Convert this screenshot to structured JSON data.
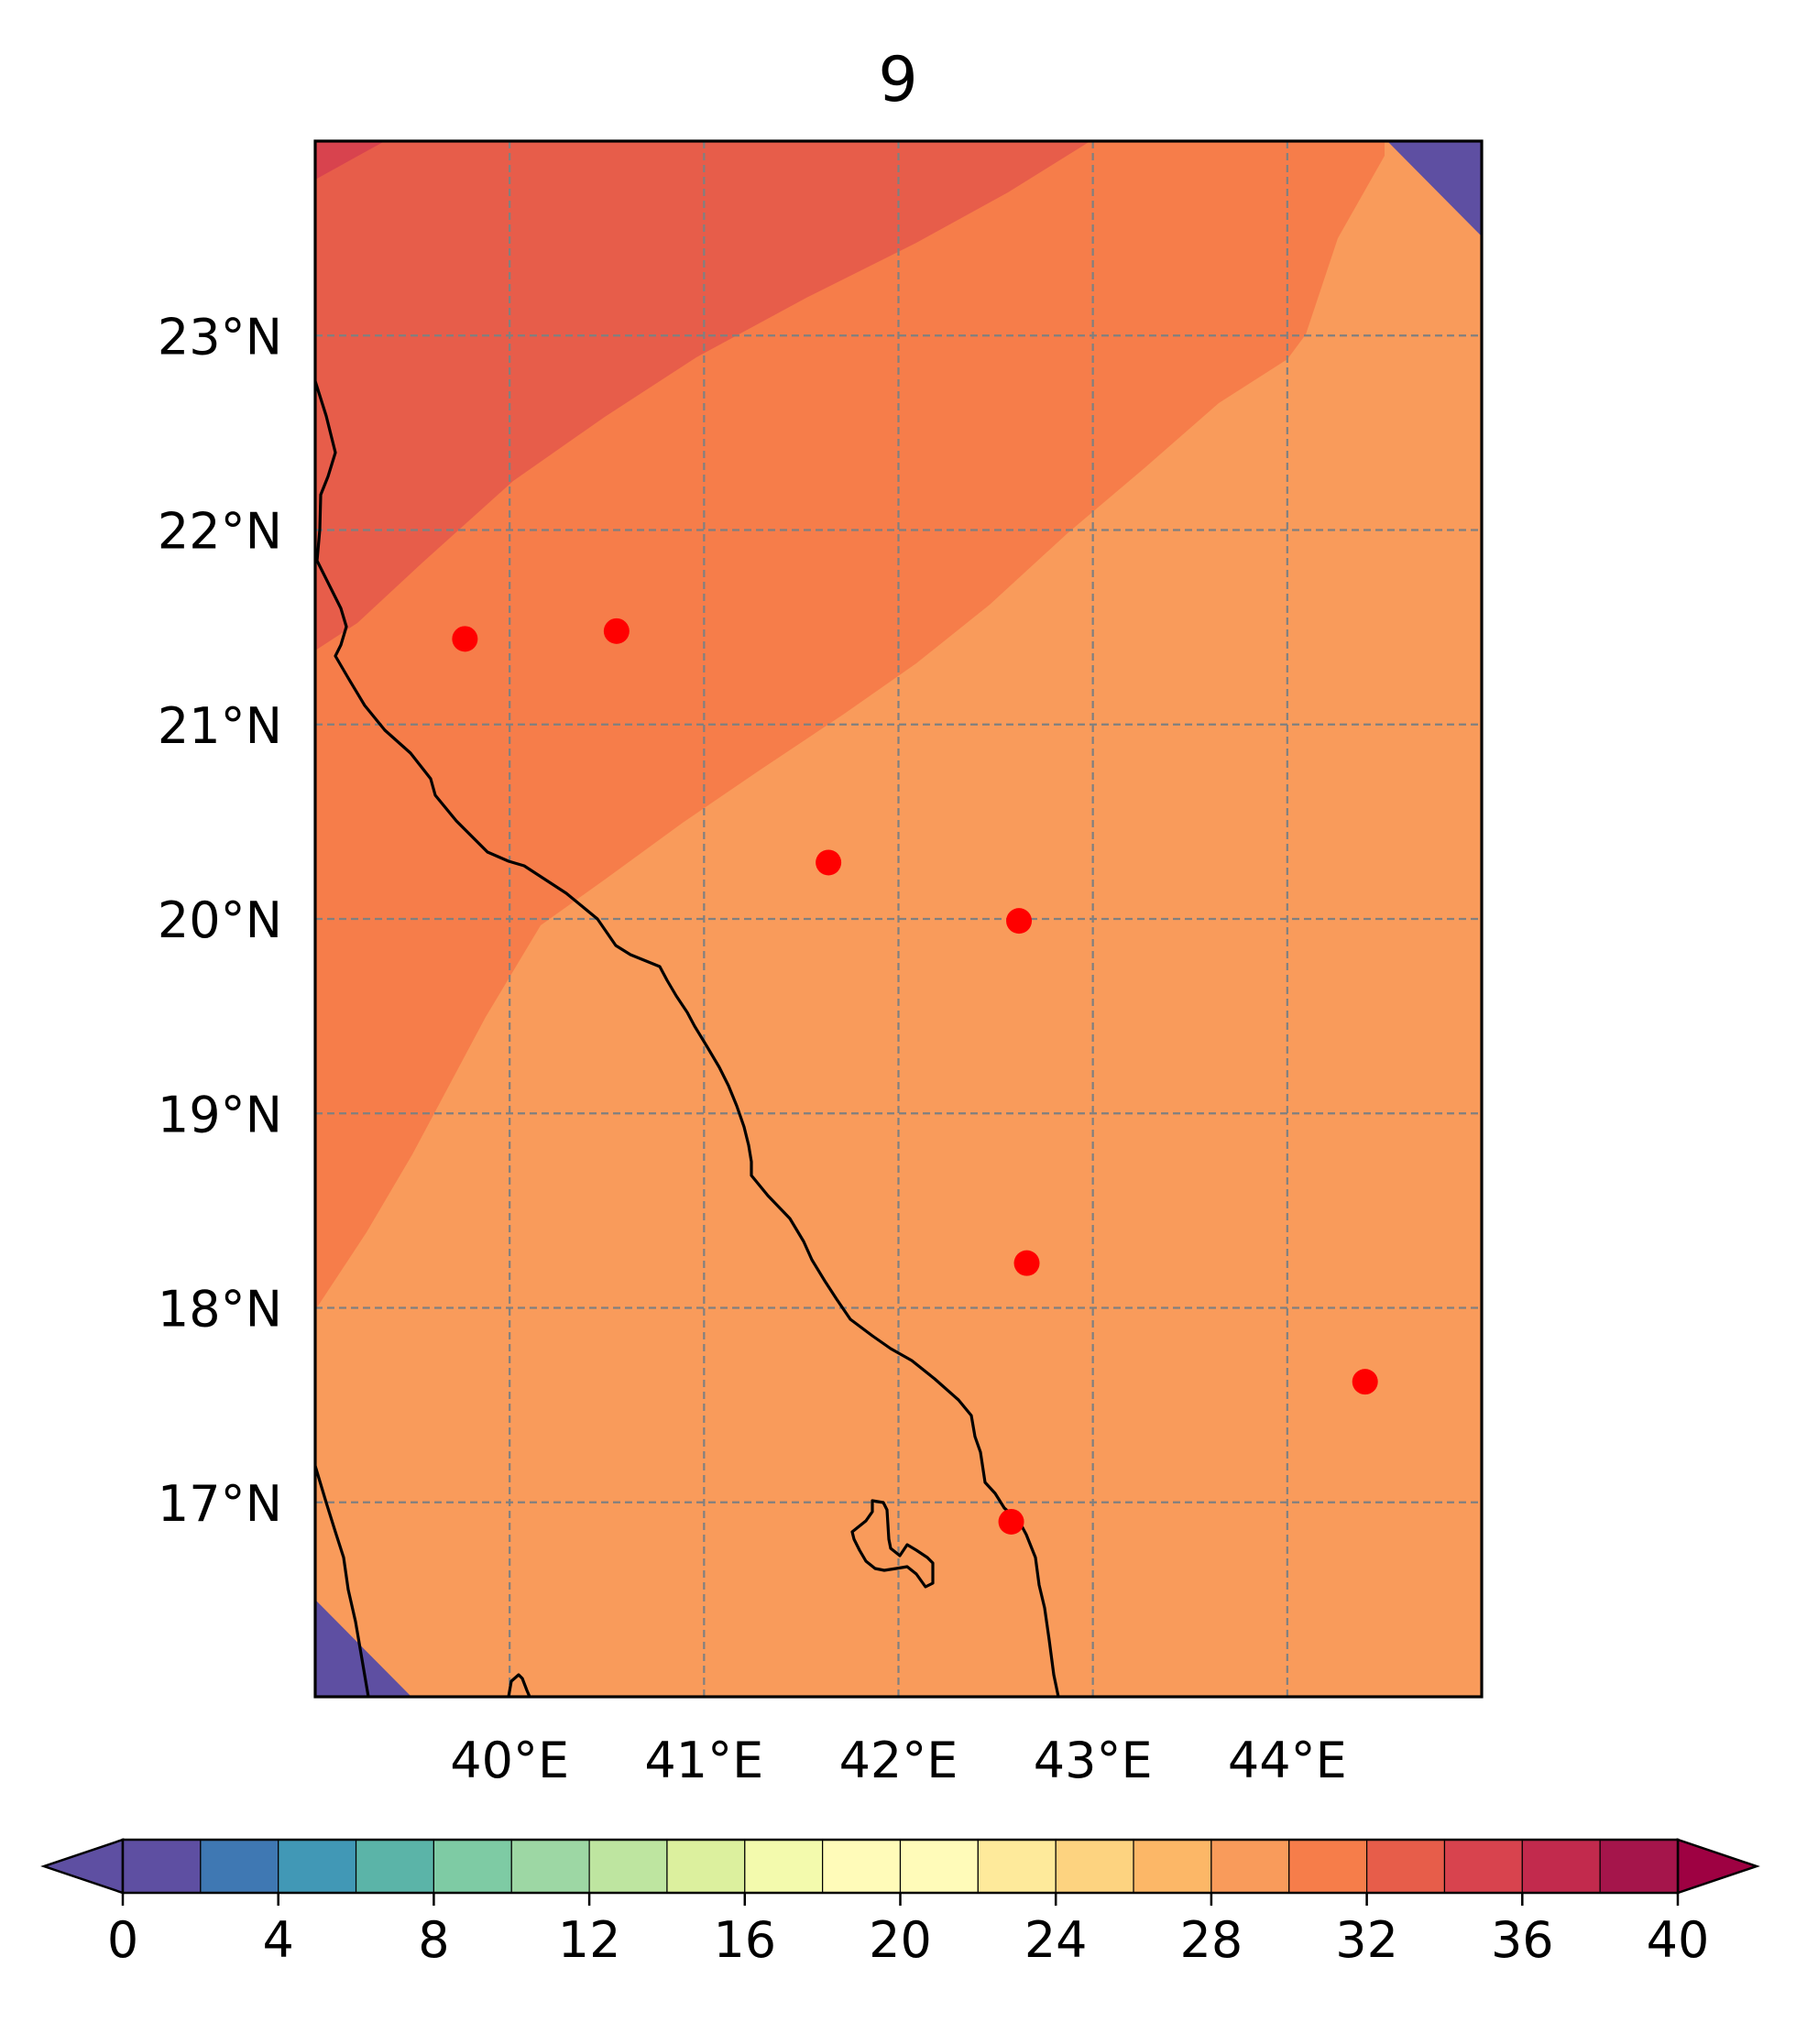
{
  "chart_data": {
    "type": "heatmap",
    "title": "9",
    "xlim": [
      39,
      45
    ],
    "ylim": [
      16,
      24
    ],
    "x_ticks": [
      "40°E",
      "41°E",
      "42°E",
      "43°E",
      "44°E"
    ],
    "x_tick_values": [
      40,
      41,
      42,
      43,
      44
    ],
    "y_ticks": [
      "23°N",
      "22°N",
      "21°N",
      "20°N",
      "19°N",
      "18°N",
      "17°N"
    ],
    "y_tick_values": [
      23,
      22,
      21,
      20,
      19,
      18,
      17
    ],
    "grid": true,
    "colormap": "Spectral_r",
    "colorbar": {
      "orientation": "horizontal",
      "placement": "bottom",
      "extend": "both",
      "range": [
        0,
        40
      ],
      "step": 2,
      "tick_labels": [
        "0",
        "4",
        "8",
        "12",
        "16",
        "20",
        "24",
        "28",
        "32",
        "36",
        "40"
      ],
      "tick_values": [
        0,
        4,
        8,
        12,
        16,
        20,
        24,
        28,
        32,
        36,
        40
      ],
      "colors": [
        "#5e4fa2",
        "#3f78b3",
        "#4198b6",
        "#5bb4a8",
        "#7ecba4",
        "#9dd7a4",
        "#bee5a0",
        "#dcf09e",
        "#f3faad",
        "#fffbb9",
        "#feea9b",
        "#fdd380",
        "#fcb767",
        "#f99b5b",
        "#f67d4a",
        "#e75d4a",
        "#d8434e",
        "#c22a4d",
        "#a5154b"
      ],
      "under_color": "#5e4fa2",
      "over_color": "#9e0142"
    },
    "filled_regions": [
      {
        "level": "30-32",
        "color": "#f67d4a"
      },
      {
        "level": "32-34",
        "color": "#e75d4a"
      },
      {
        "level": "34-36",
        "color": "#d8434e"
      },
      {
        "level": "28-30",
        "color": "#f99b5b"
      },
      {
        "level": "below 0",
        "color": "#5e4fa2"
      }
    ],
    "points": {
      "color": "#ff0000",
      "lon": [
        39.77,
        40.55,
        41.64,
        42.62,
        42.66,
        42.58,
        44.4
      ],
      "lat": [
        21.44,
        21.48,
        20.29,
        19.99,
        18.23,
        16.9,
        17.62
      ]
    },
    "coastline_color": "#000000",
    "grid_color": "#808080"
  }
}
